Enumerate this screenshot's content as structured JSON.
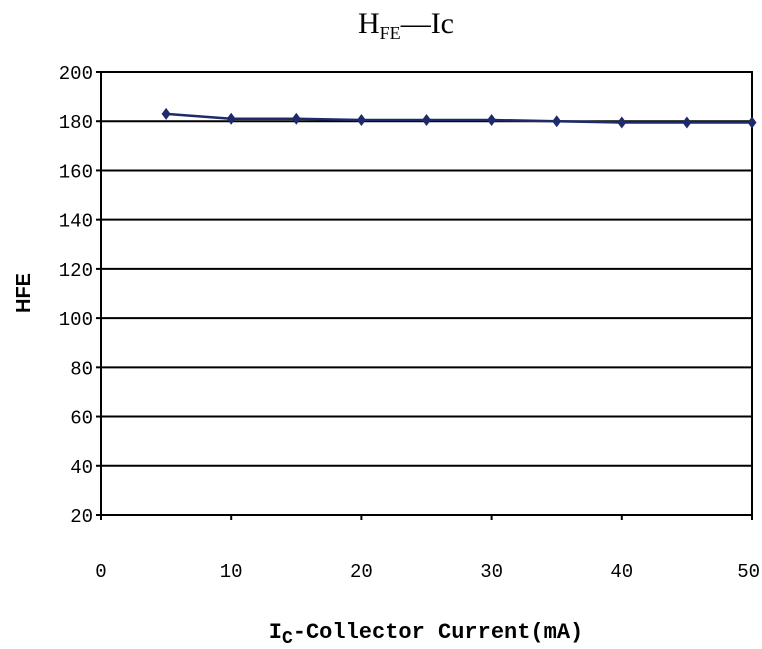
{
  "chart_data": {
    "type": "line",
    "title": {
      "main": "H",
      "sub": "FE",
      "rest": "—Ic"
    },
    "xlabel": {
      "main": "I",
      "sub": "C",
      "rest": "-Collector Current(mA)"
    },
    "ylabel": "HFE",
    "xlim": [
      0,
      50
    ],
    "ylim": [
      20,
      200
    ],
    "x_ticks": [
      "0",
      "10",
      "20",
      "30",
      "40",
      "50"
    ],
    "y_ticks": [
      "20",
      "40",
      "60",
      "80",
      "100",
      "120",
      "140",
      "160",
      "180",
      "200"
    ],
    "grid": "horizontal",
    "legend": "none",
    "series": [
      {
        "color": "#1f2a6b",
        "marker": "diamond",
        "x": [
          5,
          10,
          15,
          20,
          25,
          30,
          35,
          40,
          45,
          50
        ],
        "y": [
          183,
          181,
          181,
          180.5,
          180.5,
          180.5,
          180,
          179.5,
          179.5,
          179.5
        ]
      }
    ]
  }
}
